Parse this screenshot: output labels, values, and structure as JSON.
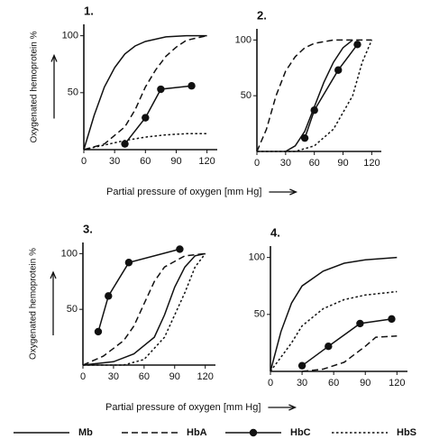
{
  "chart_data": [
    {
      "type": "line",
      "title": "1.",
      "ylabel": "Oxygenated hemoprotein %",
      "xlabel": "Partial pressure of oxygen [mm Hg]",
      "xlim": [
        0,
        130
      ],
      "ylim": [
        0,
        110
      ],
      "xticks": [
        0,
        30,
        60,
        90,
        120
      ],
      "yticks": [
        50,
        100
      ],
      "series": [
        {
          "x": [
            0,
            10,
            20,
            30,
            40,
            50,
            60,
            80,
            100,
            120
          ],
          "values": [
            0,
            30,
            55,
            72,
            84,
            91,
            95,
            99,
            100,
            100
          ]
        },
        {
          "x": [
            0,
            20,
            40,
            50,
            60,
            70,
            80,
            90,
            100,
            120
          ],
          "values": [
            0,
            5,
            20,
            35,
            55,
            70,
            82,
            90,
            96,
            100
          ]
        },
        {
          "x": [
            40,
            60,
            75,
            105
          ],
          "values": [
            5,
            28,
            53,
            56
          ]
        },
        {
          "x": [
            0,
            20,
            40,
            60,
            80,
            100,
            120
          ],
          "values": [
            0,
            4,
            8,
            11,
            13,
            14,
            14
          ]
        }
      ]
    },
    {
      "type": "line",
      "title": "2.",
      "xlim": [
        0,
        130
      ],
      "ylim": [
        0,
        110
      ],
      "xticks": [
        0,
        30,
        60,
        90,
        120
      ],
      "yticks": [
        50,
        100
      ],
      "series": [
        {
          "x": [
            30,
            40,
            50,
            60,
            70,
            80,
            90,
            100
          ],
          "values": [
            0,
            5,
            18,
            40,
            62,
            80,
            93,
            100
          ]
        },
        {
          "x": [
            0,
            10,
            20,
            30,
            40,
            50,
            60,
            80,
            100,
            120
          ],
          "values": [
            0,
            20,
            50,
            72,
            85,
            93,
            97,
            100,
            100,
            100
          ]
        },
        {
          "x": [
            50,
            60,
            85,
            105
          ],
          "values": [
            12,
            37,
            73,
            96
          ]
        },
        {
          "x": [
            0,
            40,
            60,
            80,
            100,
            110,
            120
          ],
          "values": [
            0,
            0,
            5,
            20,
            50,
            80,
            100
          ]
        }
      ]
    },
    {
      "type": "line",
      "title": "3.",
      "ylabel": "Oxygenated hemoprotein %",
      "xlabel": "Partial pressure of oxygen [mm Hg]",
      "xlim": [
        0,
        130
      ],
      "ylim": [
        0,
        110
      ],
      "xticks": [
        0,
        30,
        60,
        90,
        120
      ],
      "yticks": [
        50,
        100
      ],
      "series": [
        {
          "x": [
            0,
            30,
            50,
            70,
            80,
            90,
            100,
            110,
            120
          ],
          "values": [
            0,
            3,
            10,
            25,
            45,
            70,
            88,
            98,
            100
          ]
        },
        {
          "x": [
            0,
            20,
            40,
            50,
            60,
            70,
            80,
            100,
            120
          ],
          "values": [
            0,
            8,
            22,
            35,
            55,
            75,
            88,
            98,
            100
          ]
        },
        {
          "x": [
            15,
            25,
            45,
            95
          ],
          "values": [
            30,
            62,
            92,
            104
          ]
        },
        {
          "x": [
            0,
            40,
            60,
            80,
            100,
            110,
            120
          ],
          "values": [
            0,
            0,
            5,
            25,
            65,
            88,
            100
          ]
        }
      ]
    },
    {
      "type": "line",
      "title": "4.",
      "xlim": [
        0,
        130
      ],
      "ylim": [
        0,
        110
      ],
      "xticks": [
        0,
        30,
        60,
        90,
        120
      ],
      "yticks": [
        50,
        100
      ],
      "series": [
        {
          "x": [
            0,
            10,
            20,
            30,
            50,
            70,
            90,
            120
          ],
          "values": [
            0,
            35,
            60,
            75,
            88,
            95,
            98,
            100
          ]
        },
        {
          "x": [
            30,
            50,
            70,
            80,
            90,
            100,
            120
          ],
          "values": [
            0,
            2,
            8,
            15,
            22,
            30,
            31
          ]
        },
        {
          "x": [
            30,
            55,
            85,
            115
          ],
          "values": [
            5,
            22,
            42,
            46
          ]
        },
        {
          "x": [
            0,
            20,
            30,
            50,
            70,
            90,
            120
          ],
          "values": [
            0,
            25,
            40,
            55,
            63,
            67,
            70
          ]
        }
      ]
    }
  ],
  "legend": [
    {
      "name": "Mb",
      "dash": "solid",
      "marker": false,
      "color": "#111111"
    },
    {
      "name": "HbA",
      "dash": "dashed",
      "marker": false,
      "color": "#111111"
    },
    {
      "name": "HbC",
      "dash": "solid",
      "marker": true,
      "color": "#111111"
    },
    {
      "name": "HbS",
      "dash": "dotted",
      "marker": false,
      "color": "#111111"
    }
  ]
}
